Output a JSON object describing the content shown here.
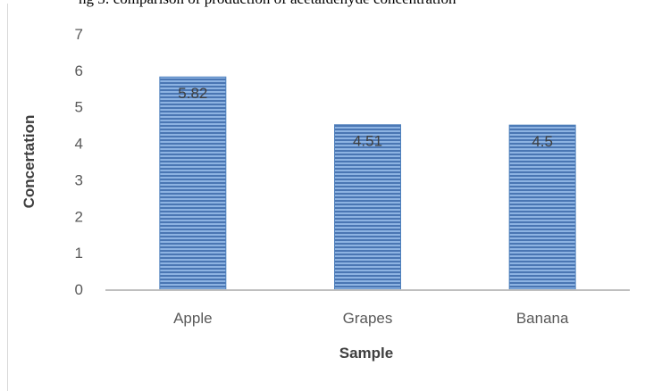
{
  "header_text": "ng 3: comparison of production of acetaldehyde concentration",
  "chart_data": {
    "type": "bar",
    "title": "",
    "categories": [
      "Apple",
      "Grapes",
      "Banana"
    ],
    "values": [
      5.82,
      4.51,
      4.5
    ],
    "data_labels": [
      "5.82",
      "4.51",
      "4.5"
    ],
    "xlabel": "Sample",
    "ylabel": "Concertation",
    "ylim": [
      0,
      7
    ],
    "yticks": [
      0,
      1,
      2,
      3,
      4,
      5,
      6,
      7
    ],
    "grid": false,
    "legend": "none",
    "colors": {
      "bar_fill": "#4f81bd",
      "bar_stripe_light": "#8db3e2",
      "bar_stripe_dark": "#4a76b3",
      "axis_line": "#bfbfbf"
    }
  }
}
